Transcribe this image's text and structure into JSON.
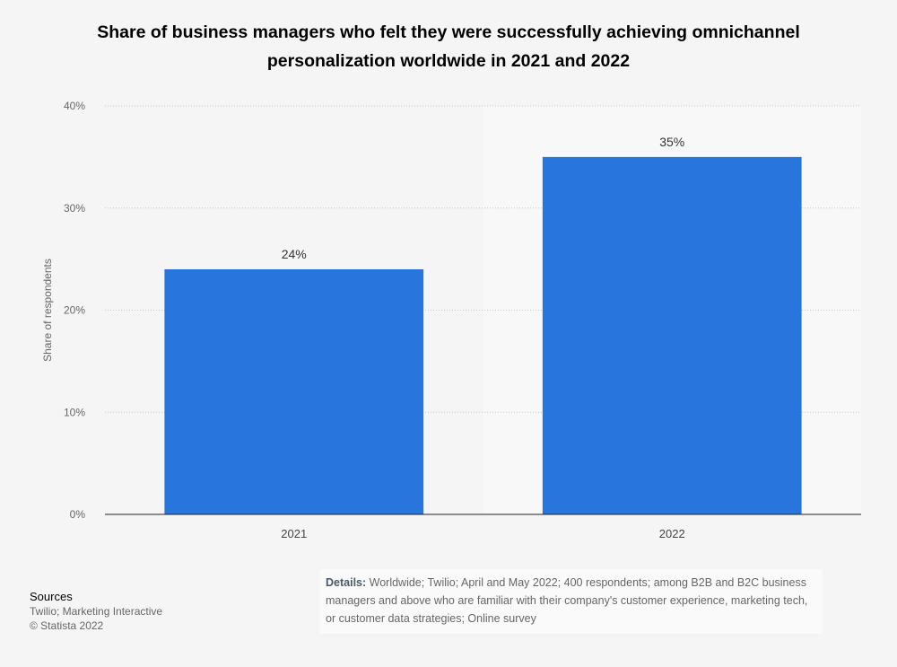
{
  "chart_data": {
    "type": "bar",
    "title": "Share of business managers who felt they were successfully achieving omnichannel personalization worldwide in 2021 and 2022",
    "categories": [
      "2021",
      "2022"
    ],
    "values": [
      24,
      35
    ],
    "data_labels": [
      "24%",
      "35%"
    ],
    "xlabel": "",
    "ylabel": "Share of respondents",
    "ylim": [
      0,
      40
    ],
    "yticks": [
      0,
      10,
      20,
      30,
      40
    ],
    "ytick_labels": [
      "0%",
      "10%",
      "20%",
      "30%",
      "40%"
    ],
    "grid": true,
    "bar_color": "#2876dd"
  },
  "sources": {
    "heading": "Sources",
    "line1": "Twilio; Marketing Interactive",
    "line2": "© Statista 2022"
  },
  "details": {
    "label": "Details:",
    "text": " Worldwide; Twilio; April and May 2022; 400 respondents; among B2B and B2C business managers and above who are familiar with their company's customer experience, marketing tech, or customer data strategies; Online survey"
  }
}
